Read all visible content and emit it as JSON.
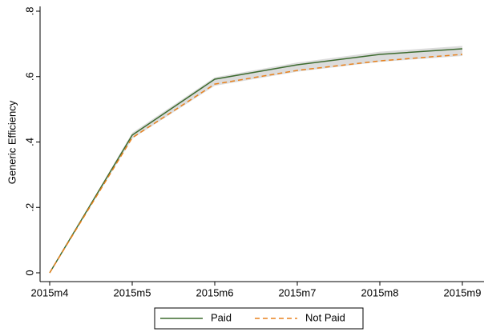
{
  "chart_data": {
    "type": "line",
    "y_label": "Generic Efficiency",
    "categories": [
      "2015m4",
      "2015m5",
      "2015m6",
      "2015m7",
      "2015m8",
      "2015m9"
    ],
    "series": [
      {
        "name": "Paid",
        "color": "#3d6b2f",
        "dash": false,
        "values": [
          0,
          0.421,
          0.592,
          0.636,
          0.668,
          0.685
        ]
      },
      {
        "name": "Not Paid",
        "color": "#e8821e",
        "dash": true,
        "values": [
          0,
          0.413,
          0.577,
          0.619,
          0.648,
          0.668
        ]
      }
    ],
    "band": {
      "color": "#dcdcdc",
      "upper": [
        0,
        0.428,
        0.598,
        0.643,
        0.676,
        0.694
      ],
      "lower": [
        0,
        0.41,
        0.572,
        0.615,
        0.645,
        0.663
      ]
    },
    "ylim": [
      0,
      0.8
    ],
    "yticks": [
      0,
      {
        "value": 0.2,
        "label": ".2"
      },
      {
        "value": 0.4,
        "label": ".4"
      },
      {
        "value": 0.6,
        "label": ".6"
      },
      {
        "value": 0.8,
        "label": ".8"
      }
    ],
    "grid": false,
    "legend": "bottom"
  }
}
